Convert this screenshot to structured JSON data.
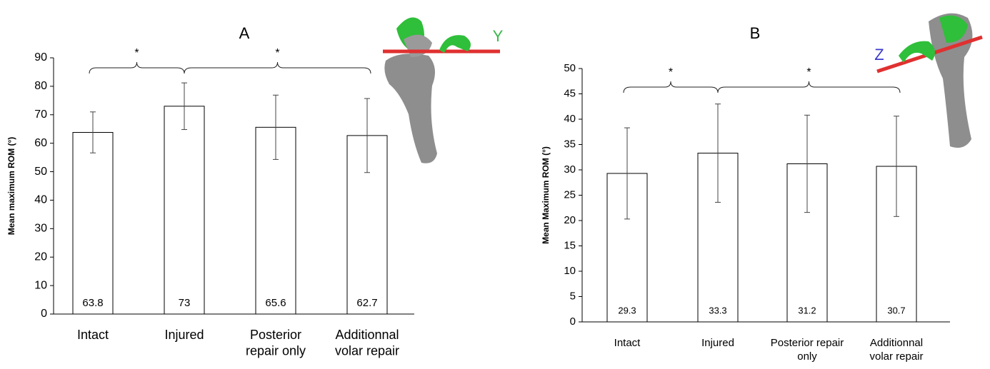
{
  "chart_data": [
    {
      "type": "bar",
      "title": "A",
      "ylabel": "Mean maximum ROM (°)",
      "categories": [
        "Intact",
        "Injured",
        "Posterior repair only",
        "Additionnal volar repair"
      ],
      "values": [
        63.8,
        73,
        65.6,
        62.7
      ],
      "errors": [
        7.2,
        8.2,
        11.3,
        13.0
      ],
      "color": "#ffffff",
      "ylim": [
        0,
        90
      ],
      "yticks": [
        0,
        10,
        20,
        30,
        40,
        50,
        60,
        70,
        80,
        90
      ],
      "significance_marks": [
        "*",
        "*"
      ],
      "axis_label": "Y"
    },
    {
      "type": "bar",
      "title": "B",
      "ylabel": "Mean Maximum ROM (°)",
      "categories": [
        "Intact",
        "Injured",
        "Posterior repair only",
        "Additionnal volar repair"
      ],
      "values": [
        29.3,
        33.3,
        31.2,
        30.7
      ],
      "errors": [
        9.0,
        9.7,
        9.6,
        9.9
      ],
      "color": "#ffffff",
      "ylim": [
        0,
        50
      ],
      "yticks": [
        0,
        5,
        10,
        15,
        20,
        25,
        30,
        35,
        40,
        45,
        50
      ],
      "significance_marks": [
        "*",
        "*"
      ],
      "axis_label": "Z"
    }
  ]
}
